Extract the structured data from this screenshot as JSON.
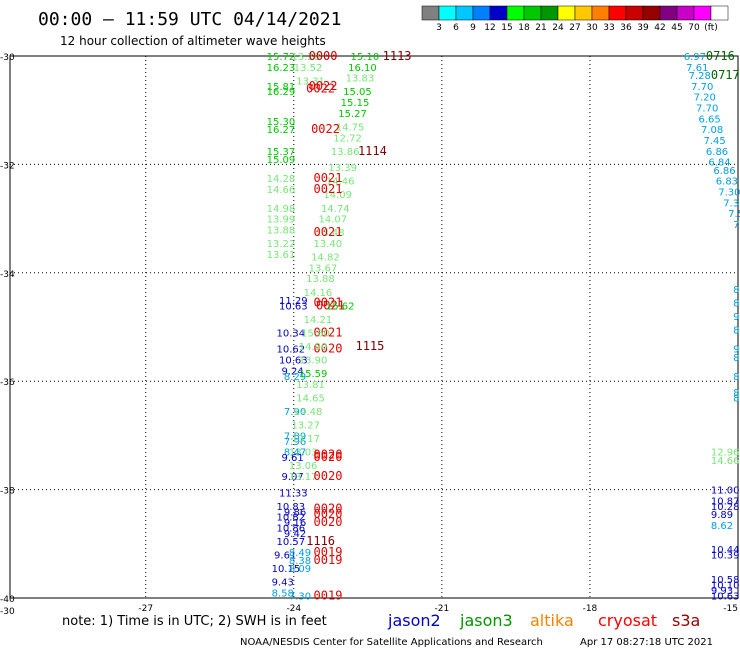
{
  "header": {
    "title": "00:00 – 11:59 UTC 04/14/2021",
    "subtitle": "12 hour collection of altimeter wave heights"
  },
  "legend": {
    "colors": [
      "#808080",
      "#00ffff",
      "#00c8ff",
      "#0080ff",
      "#0000c8",
      "#00ff00",
      "#00c800",
      "#009600",
      "#ffff00",
      "#ffc800",
      "#ff8000",
      "#ff0000",
      "#c80000",
      "#960000",
      "#800080",
      "#c800c8",
      "#ff00ff",
      "#ffffff"
    ],
    "ticks": [
      "3",
      "6",
      "9",
      "12",
      "15",
      "18",
      "21",
      "24",
      "27",
      "30",
      "33",
      "36",
      "39",
      "42",
      "45",
      "70",
      "(ft)"
    ]
  },
  "axes": {
    "lat_labels": [
      "-30",
      "-32",
      "-34",
      "-36",
      "-38",
      "-40",
      "-30"
    ],
    "lon_labels": [
      "-27",
      "-24",
      "-21",
      "-18",
      "-15"
    ]
  },
  "footer": {
    "note": "note: 1) Time is in UTC; 2) SWH is in feet",
    "satellites": [
      {
        "name": "jason2",
        "color": "#0000c8"
      },
      {
        "name": "jason3",
        "color": "#009600"
      },
      {
        "name": "altika",
        "color": "#ff8000"
      },
      {
        "name": "cryosat",
        "color": "#ff0000"
      },
      {
        "name": "s3a",
        "color": "#960000"
      }
    ],
    "credit": "NOAA/NESDIS Center for Satellite Applications and Research",
    "timestamp": "Apr 17 08:27:18 UTC 2021"
  },
  "points": [
    {
      "t": "15.72",
      "c": "#00c800",
      "lat": -30.0,
      "lon": -24.55
    },
    {
      "t": "16.23",
      "c": "#00c800",
      "lat": -30.2,
      "lon": -24.55
    },
    {
      "t": "13.20",
      "c": "#78e678",
      "lat": -30.0,
      "lon": -24.05
    },
    {
      "t": "13.52",
      "c": "#78e678",
      "lat": -30.2,
      "lon": -24.0
    },
    {
      "t": "13.31",
      "c": "#78e678",
      "lat": -30.45,
      "lon": -23.95
    },
    {
      "t": "0000",
      "c": "#c80000",
      "lat": -30.0,
      "lon": -23.7
    },
    {
      "t": "15.10",
      "c": "#00c800",
      "lat": -30.0,
      "lon": -22.85
    },
    {
      "t": "16.10",
      "c": "#00c800",
      "lat": -30.2,
      "lon": -22.9
    },
    {
      "t": "13.83",
      "c": "#78e678",
      "lat": -30.4,
      "lon": -22.95
    },
    {
      "t": "15.05",
      "c": "#00c800",
      "lat": -30.65,
      "lon": -23.0
    },
    {
      "t": "15.15",
      "c": "#00c800",
      "lat": -30.85,
      "lon": -23.05
    },
    {
      "t": "15.27",
      "c": "#00c800",
      "lat": -31.05,
      "lon": -23.1
    },
    {
      "t": "14.75",
      "c": "#78e678",
      "lat": -31.3,
      "lon": -23.15
    },
    {
      "t": "12.72",
      "c": "#78e678",
      "lat": -31.5,
      "lon": -23.2
    },
    {
      "t": "13.86",
      "c": "#78e678",
      "lat": -31.75,
      "lon": -23.25
    },
    {
      "t": "1113",
      "c": "#800000",
      "lat": -30.0,
      "lon": -22.2
    },
    {
      "t": "1114",
      "c": "#800000",
      "lat": -31.75,
      "lon": -22.7
    },
    {
      "t": "15.81",
      "c": "#00c800",
      "lat": -30.55,
      "lon": -24.55
    },
    {
      "t": "16.29",
      "c": "#00c800",
      "lat": -30.65,
      "lon": -24.55
    },
    {
      "t": "0022",
      "c": "#e60000",
      "lat": -30.55,
      "lon": -23.7
    },
    {
      "t": "0022",
      "c": "#e60000",
      "lat": -30.6,
      "lon": -23.75
    },
    {
      "t": "15.30",
      "c": "#00c800",
      "lat": -31.2,
      "lon": -24.55
    },
    {
      "t": "16.27",
      "c": "#00c800",
      "lat": -31.35,
      "lon": -24.55
    },
    {
      "t": "0022",
      "c": "#e60000",
      "lat": -31.35,
      "lon": -23.65
    },
    {
      "t": "15.37",
      "c": "#00c800",
      "lat": -31.75,
      "lon": -24.55
    },
    {
      "t": "15.09",
      "c": "#00c800",
      "lat": -31.9,
      "lon": -24.55
    },
    {
      "t": "13.39",
      "c": "#78e678",
      "lat": -32.05,
      "lon": -23.3
    },
    {
      "t": "14.46",
      "c": "#78e678",
      "lat": -32.3,
      "lon": -23.35
    },
    {
      "t": "14.09",
      "c": "#78e678",
      "lat": -32.55,
      "lon": -23.4
    },
    {
      "t": "14.74",
      "c": "#78e678",
      "lat": -32.8,
      "lon": -23.45
    },
    {
      "t": "14.07",
      "c": "#78e678",
      "lat": -33.0,
      "lon": -23.5
    },
    {
      "t": "13.48",
      "c": "#78e678",
      "lat": -33.25,
      "lon": -23.55
    },
    {
      "t": "13.40",
      "c": "#78e678",
      "lat": -33.45,
      "lon": -23.6
    },
    {
      "t": "14.82",
      "c": "#78e678",
      "lat": -33.7,
      "lon": -23.65
    },
    {
      "t": "13.67",
      "c": "#78e678",
      "lat": -33.9,
      "lon": -23.7
    },
    {
      "t": "13.88",
      "c": "#78e678",
      "lat": -34.1,
      "lon": -23.75
    },
    {
      "t": "14.16",
      "c": "#78e678",
      "lat": -34.35,
      "lon": -23.8
    },
    {
      "t": "14.28",
      "c": "#78e678",
      "lat": -32.25,
      "lon": -24.55
    },
    {
      "t": "14.66",
      "c": "#78e678",
      "lat": -32.45,
      "lon": -24.55
    },
    {
      "t": "0021",
      "c": "#e60000",
      "lat": -32.25,
      "lon": -23.6
    },
    {
      "t": "0021",
      "c": "#e60000",
      "lat": -32.45,
      "lon": -23.6
    },
    {
      "t": "14.98",
      "c": "#78e678",
      "lat": -32.8,
      "lon": -24.55
    },
    {
      "t": "13.99",
      "c": "#78e678",
      "lat": -33.0,
      "lon": -24.55
    },
    {
      "t": "13.88",
      "c": "#78e678",
      "lat": -33.2,
      "lon": -24.55
    },
    {
      "t": "13.22",
      "c": "#78e678",
      "lat": -33.45,
      "lon": -24.55
    },
    {
      "t": "13.61",
      "c": "#78e678",
      "lat": -33.65,
      "lon": -24.55
    },
    {
      "t": "0021",
      "c": "#e60000",
      "lat": -33.25,
      "lon": -23.6
    },
    {
      "t": "11.29",
      "c": "#0000c8",
      "lat": -34.5,
      "lon": -24.3
    },
    {
      "t": "10.63",
      "c": "#0000c8",
      "lat": -34.6,
      "lon": -24.3
    },
    {
      "t": "0021",
      "c": "#e60000",
      "lat": -34.55,
      "lon": -23.6
    },
    {
      "t": "0021",
      "c": "#e60000",
      "lat": -34.6,
      "lon": -23.55
    },
    {
      "t": "15.62",
      "c": "#00c800",
      "lat": -34.6,
      "lon": -23.35
    },
    {
      "t": "14.21",
      "c": "#78e678",
      "lat": -34.85,
      "lon": -23.8
    },
    {
      "t": "10.34",
      "c": "#0000c8",
      "lat": -35.1,
      "lon": -24.35
    },
    {
      "t": "0021",
      "c": "#e60000",
      "lat": -35.1,
      "lon": -23.6
    },
    {
      "t": "15.60",
      "c": "#78e678",
      "lat": -35.1,
      "lon": -23.85
    },
    {
      "t": "10.62",
      "c": "#0000c8",
      "lat": -35.4,
      "lon": -24.35
    },
    {
      "t": "0020",
      "c": "#e60000",
      "lat": -35.4,
      "lon": -23.6
    },
    {
      "t": "14.90",
      "c": "#78e678",
      "lat": -35.35,
      "lon": -23.9
    },
    {
      "t": "1115",
      "c": "#800000",
      "lat": -35.35,
      "lon": -22.75
    },
    {
      "t": "10.63",
      "c": "#0000c8",
      "lat": -35.6,
      "lon": -24.3
    },
    {
      "t": "13.90",
      "c": "#78e678",
      "lat": -35.6,
      "lon": -23.9
    },
    {
      "t": "9.24",
      "c": "#0000c8",
      "lat": -35.8,
      "lon": -24.25
    },
    {
      "t": "8.29",
      "c": "#00a0e6",
      "lat": -35.9,
      "lon": -24.2
    },
    {
      "t": "15.59",
      "c": "#00c800",
      "lat": -35.85,
      "lon": -23.9
    },
    {
      "t": "13.81",
      "c": "#78e678",
      "lat": -36.05,
      "lon": -23.95
    },
    {
      "t": "14.65",
      "c": "#78e678",
      "lat": -36.3,
      "lon": -23.95
    },
    {
      "t": "7.90",
      "c": "#00a0e6",
      "lat": -36.55,
      "lon": -24.2
    },
    {
      "t": "14.48",
      "c": "#78e678",
      "lat": -36.55,
      "lon": -24.0
    },
    {
      "t": "13.27",
      "c": "#78e678",
      "lat": -36.8,
      "lon": -24.05
    },
    {
      "t": "7.89",
      "c": "#00a0e6",
      "lat": -37.0,
      "lon": -24.2
    },
    {
      "t": "7.96",
      "c": "#00a0e6",
      "lat": -37.1,
      "lon": -24.2
    },
    {
      "t": "13.17",
      "c": "#78e678",
      "lat": -37.05,
      "lon": -24.05
    },
    {
      "t": "13.03",
      "c": "#78e678",
      "lat": -37.3,
      "lon": -24.1
    },
    {
      "t": "8.47",
      "c": "#00a0e6",
      "lat": -37.3,
      "lon": -24.2
    },
    {
      "t": "9.61",
      "c": "#0000c8",
      "lat": -37.4,
      "lon": -24.25
    },
    {
      "t": "0020",
      "c": "#e60000",
      "lat": -37.35,
      "lon": -23.6
    },
    {
      "t": "0020",
      "c": "#e60000",
      "lat": -37.4,
      "lon": -23.6
    },
    {
      "t": "13.06",
      "c": "#78e678",
      "lat": -37.55,
      "lon": -24.1
    },
    {
      "t": "9.07",
      "c": "#0000c8",
      "lat": -37.75,
      "lon": -24.25
    },
    {
      "t": "13.17",
      "c": "#78e678",
      "lat": -37.75,
      "lon": -24.1
    },
    {
      "t": "0020",
      "c": "#e60000",
      "lat": -37.75,
      "lon": -23.6
    },
    {
      "t": "11.33",
      "c": "#0000c8",
      "lat": -38.05,
      "lon": -24.3
    },
    {
      "t": "10.83",
      "c": "#0000c8",
      "lat": -38.3,
      "lon": -24.35
    },
    {
      "t": "9.86",
      "c": "#0000c8",
      "lat": -38.4,
      "lon": -24.2
    },
    {
      "t": "0020",
      "c": "#e60000",
      "lat": -38.35,
      "lon": -23.6
    },
    {
      "t": "0020",
      "c": "#e60000",
      "lat": -38.45,
      "lon": -23.6
    },
    {
      "t": "10.82",
      "c": "#0000c8",
      "lat": -38.5,
      "lon": -24.35
    },
    {
      "t": "9.16",
      "c": "#0000c8",
      "lat": -38.6,
      "lon": -24.2
    },
    {
      "t": "0020",
      "c": "#e60000",
      "lat": -38.6,
      "lon": -23.6
    },
    {
      "t": "10.86",
      "c": "#0000c8",
      "lat": -38.7,
      "lon": -24.35
    },
    {
      "t": "9.42",
      "c": "#0000c8",
      "lat": -38.8,
      "lon": -24.2
    },
    {
      "t": "10.57",
      "c": "#0000c8",
      "lat": -38.95,
      "lon": -24.35
    },
    {
      "t": "1116",
      "c": "#800000",
      "lat": -38.95,
      "lon": -23.75
    },
    {
      "t": "9.61",
      "c": "#0000c8",
      "lat": -39.2,
      "lon": -24.4
    },
    {
      "t": "8.49",
      "c": "#00a0e6",
      "lat": -39.15,
      "lon": -24.1
    },
    {
      "t": "0019",
      "c": "#e60000",
      "lat": -39.15,
      "lon": -23.6
    },
    {
      "t": "8.38",
      "c": "#00a0e6",
      "lat": -39.3,
      "lon": -24.1
    },
    {
      "t": "0019",
      "c": "#e60000",
      "lat": -39.3,
      "lon": -23.6
    },
    {
      "t": "10.15",
      "c": "#0000c8",
      "lat": -39.45,
      "lon": -24.45
    },
    {
      "t": "8.09",
      "c": "#00a0e6",
      "lat": -39.45,
      "lon": -24.1
    },
    {
      "t": "9.43",
      "c": "#0000c8",
      "lat": -39.7,
      "lon": -24.45
    },
    {
      "t": "8.58",
      "c": "#00a0e6",
      "lat": -39.9,
      "lon": -24.45
    },
    {
      "t": "7.30",
      "c": "#00a0e6",
      "lat": -39.95,
      "lon": -24.1
    },
    {
      "t": "0019",
      "c": "#e60000",
      "lat": -39.95,
      "lon": -23.6
    },
    {
      "t": "6.97",
      "c": "#00a0e6",
      "lat": -30.0,
      "lon": -16.1
    },
    {
      "t": "0716",
      "c": "#006400",
      "lat": -30.0,
      "lon": -15.65
    },
    {
      "t": "7.61",
      "c": "#00a0e6",
      "lat": -30.2,
      "lon": -16.05
    },
    {
      "t": "7.28",
      "c": "#00a0e6",
      "lat": -30.35,
      "lon": -16.0
    },
    {
      "t": "0717",
      "c": "#006400",
      "lat": -30.35,
      "lon": -15.55
    },
    {
      "t": "7.70",
      "c": "#00a0e6",
      "lat": -30.55,
      "lon": -15.95
    },
    {
      "t": "7.20",
      "c": "#00a0e6",
      "lat": -30.75,
      "lon": -15.9
    },
    {
      "t": "7.70",
      "c": "#00a0e6",
      "lat": -30.95,
      "lon": -15.85
    },
    {
      "t": "6.65",
      "c": "#00a0e6",
      "lat": -31.15,
      "lon": -15.8
    },
    {
      "t": "7.08",
      "c": "#00a0e6",
      "lat": -31.35,
      "lon": -15.75
    },
    {
      "t": "7.45",
      "c": "#00a0e6",
      "lat": -31.55,
      "lon": -15.7
    },
    {
      "t": "6.86",
      "c": "#00a0e6",
      "lat": -31.75,
      "lon": -15.65
    },
    {
      "t": "6.84",
      "c": "#00a0e6",
      "lat": -31.95,
      "lon": -15.6
    },
    {
      "t": "6.86",
      "c": "#00a0e6",
      "lat": -32.1,
      "lon": -15.5
    },
    {
      "t": "6.83",
      "c": "#00a0e6",
      "lat": -32.3,
      "lon": -15.45
    },
    {
      "t": "7.30",
      "c": "#00a0e6",
      "lat": -32.5,
      "lon": -15.4
    },
    {
      "t": "7.36",
      "c": "#00a0e6",
      "lat": -32.7,
      "lon": -15.3
    },
    {
      "t": "7.5",
      "c": "#00a0e6",
      "lat": -32.9,
      "lon": -15.2
    },
    {
      "t": "7.",
      "c": "#00a0e6",
      "lat": -33.1,
      "lon": -15.1
    },
    {
      "t": "12.96",
      "c": "#78e678",
      "lat": -37.3,
      "lon": -15.55
    },
    {
      "t": "14.66",
      "c": "#78e678",
      "lat": -37.45,
      "lon": -15.55
    },
    {
      "t": "11.00",
      "c": "#0000c8",
      "lat": -38.0,
      "lon": -15.55
    },
    {
      "t": "10.87",
      "c": "#0000c8",
      "lat": -38.2,
      "lon": -15.55
    },
    {
      "t": "10.28",
      "c": "#0000c8",
      "lat": -38.3,
      "lon": -15.55
    },
    {
      "t": "9.89",
      "c": "#0000c8",
      "lat": -38.45,
      "lon": -15.55
    },
    {
      "t": "8.62",
      "c": "#00a0e6",
      "lat": -38.65,
      "lon": -15.55
    },
    {
      "t": "10.44",
      "c": "#0000c8",
      "lat": -39.1,
      "lon": -15.55
    },
    {
      "t": "10.39",
      "c": "#0000c8",
      "lat": -39.2,
      "lon": -15.55
    },
    {
      "t": "10.58",
      "c": "#0000c8",
      "lat": -39.65,
      "lon": -15.55
    },
    {
      "t": "10.10",
      "c": "#0000c8",
      "lat": -39.75,
      "lon": -15.55
    },
    {
      "t": "9.93",
      "c": "#0000c8",
      "lat": -39.85,
      "lon": -15.55
    },
    {
      "t": "10.63",
      "c": "#0000c8",
      "lat": -39.95,
      "lon": -15.55
    },
    {
      "t": "8",
      "c": "#00a0e6",
      "lat": -34.3,
      "lon": -15.1
    },
    {
      "t": "8",
      "c": "#00a0e6",
      "lat": -34.55,
      "lon": -15.1
    },
    {
      "t": "9.",
      "c": "#00a0e6",
      "lat": -34.8,
      "lon": -15.1
    },
    {
      "t": "8.",
      "c": "#00a0e6",
      "lat": -35.05,
      "lon": -15.1
    },
    {
      "t": "9.",
      "c": "#00a0e6",
      "lat": -35.4,
      "lon": -15.1
    },
    {
      "t": "8.9",
      "c": "#00a0e6",
      "lat": -35.55,
      "lon": -15.1
    },
    {
      "t": "8.8",
      "c": "#00a0e6",
      "lat": -35.9,
      "lon": -15.1
    },
    {
      "t": "8.6",
      "c": "#00a0e6",
      "lat": -36.2,
      "lon": -15.1
    },
    {
      "t": "8.1",
      "c": "#00a0e6",
      "lat": -36.3,
      "lon": -15.1
    }
  ]
}
